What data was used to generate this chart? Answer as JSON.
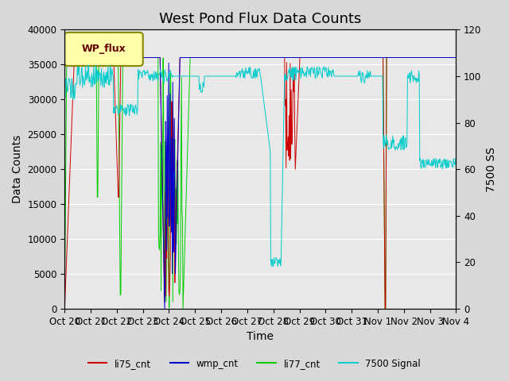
{
  "title": "West Pond Flux Data Counts",
  "xlabel": "Time",
  "ylabel_left": "Data Counts",
  "ylabel_right": "7500 SS",
  "legend_label": "WP_flux",
  "series_labels": [
    "li75_cnt",
    "wmp_cnt",
    "li77_cnt",
    "7500 Signal"
  ],
  "series_colors": [
    "#cc0000",
    "#0000cc",
    "#00cc00",
    "#00cccc"
  ],
  "ylim_left": [
    0,
    40000
  ],
  "ylim_right": [
    0,
    120
  ],
  "bg_color": "#d8d8d8",
  "plot_bg_color": "#e8e8e8",
  "x_tick_labels": [
    "Oct 20",
    "Oct 21",
    "Oct 22",
    "Oct 23",
    "Oct 24",
    "Oct 25",
    "Oct 26",
    "Oct 27",
    "Oct 28",
    "Oct 29",
    "Oct 30",
    "Oct 31",
    "Nov 1",
    "Nov 2",
    "Nov 3",
    "Nov 4"
  ],
  "title_fontsize": 13,
  "tick_fontsize": 8.5,
  "label_fontsize": 10,
  "legend_box_color": "#ffffaa",
  "legend_box_edge": "#888800"
}
